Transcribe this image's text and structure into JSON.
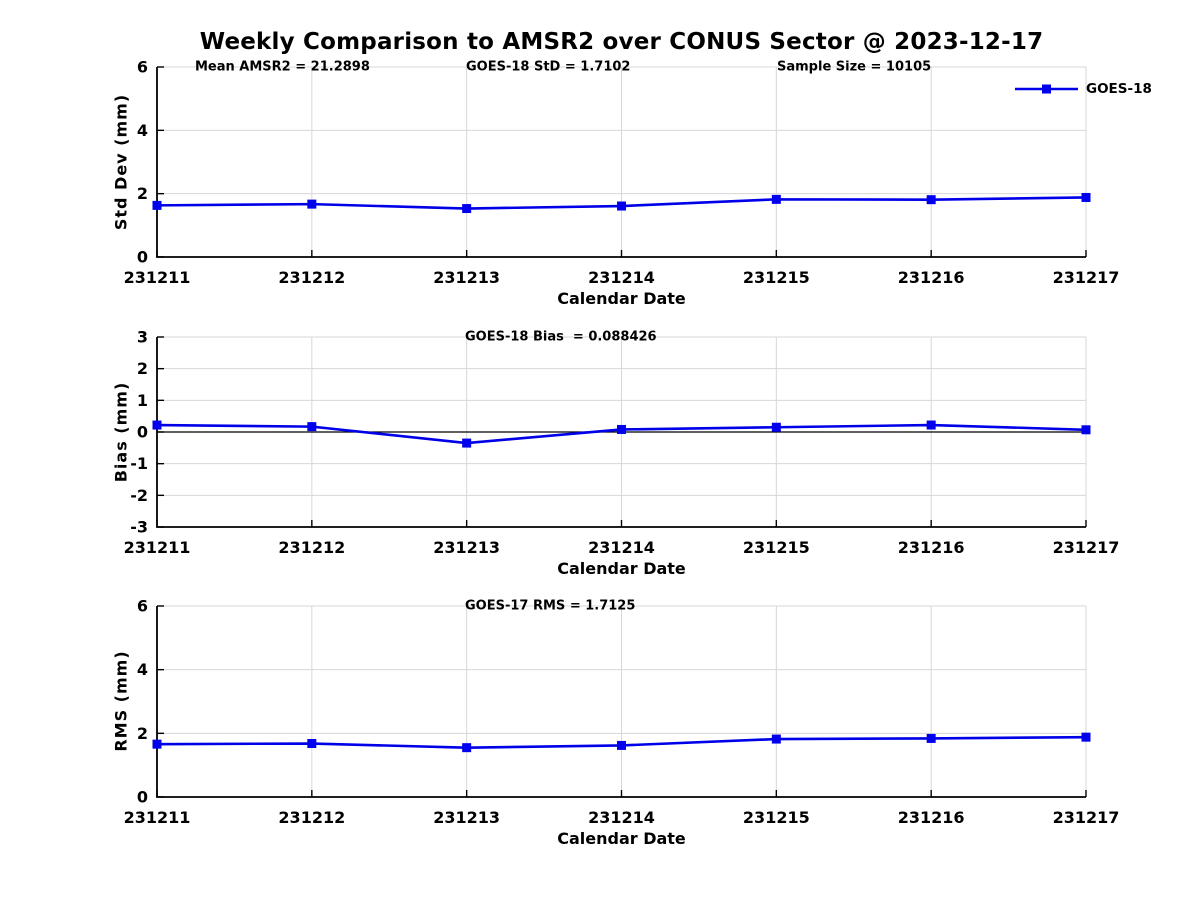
{
  "title": "Weekly Comparison to AMSR2 over CONUS Sector @ 2023-12-17",
  "legend": {
    "label": "GOES-18"
  },
  "colors": {
    "line": "#0000E8",
    "marker": "#0000EE",
    "grid": "#d7d7d7",
    "axis": "#000000",
    "zero_line": "#000000",
    "background": "#ffffff",
    "text": "#000000"
  },
  "chart_data": [
    {
      "type": "line",
      "id": "std-dev",
      "categories": [
        "231211",
        "231212",
        "231213",
        "231214",
        "231215",
        "231216",
        "231217"
      ],
      "series": [
        {
          "name": "GOES-18",
          "values": [
            1.63,
            1.67,
            1.53,
            1.61,
            1.82,
            1.81,
            1.88
          ]
        }
      ],
      "annotations": [
        {
          "text": "Mean AMSR2 = 21.2898",
          "xfrac": 0.041
        },
        {
          "text": "GOES-18 StD = 1.7102",
          "xfrac": 0.333
        },
        {
          "text": "Sample Size = 10105",
          "xfrac": 0.667
        }
      ],
      "xlabel": "Calendar Date",
      "ylabel": "Std Dev (mm)",
      "ylim": [
        0,
        6
      ],
      "yticks": [
        0,
        2,
        4,
        6
      ],
      "grid": true,
      "zero_line": false,
      "legend_position": "top-right"
    },
    {
      "type": "line",
      "id": "bias",
      "categories": [
        "231211",
        "231212",
        "231213",
        "231214",
        "231215",
        "231216",
        "231217"
      ],
      "series": [
        {
          "name": "GOES-18",
          "values": [
            0.22,
            0.17,
            -0.35,
            0.08,
            0.15,
            0.22,
            0.07
          ]
        }
      ],
      "annotations": [
        {
          "text": "GOES-18 Bias  = 0.088426",
          "xfrac": 0.332
        }
      ],
      "xlabel": "Calendar Date",
      "ylabel": "Bias (mm)",
      "ylim": [
        -3,
        3
      ],
      "yticks": [
        -3,
        -2,
        -1,
        0,
        1,
        2,
        3
      ],
      "grid": true,
      "zero_line": true,
      "legend_position": "none"
    },
    {
      "type": "line",
      "id": "rms",
      "categories": [
        "231211",
        "231212",
        "231213",
        "231214",
        "231215",
        "231216",
        "231217"
      ],
      "series": [
        {
          "name": "GOES-18",
          "values": [
            1.66,
            1.68,
            1.55,
            1.62,
            1.82,
            1.84,
            1.88
          ]
        }
      ],
      "annotations": [
        {
          "text": "GOES-17 RMS = 1.7125",
          "xfrac": 0.332
        }
      ],
      "xlabel": "Calendar Date",
      "ylabel": "RMS (mm)",
      "ylim": [
        0,
        6
      ],
      "yticks": [
        0,
        2,
        4,
        6
      ],
      "grid": true,
      "zero_line": false,
      "legend_position": "none"
    }
  ]
}
